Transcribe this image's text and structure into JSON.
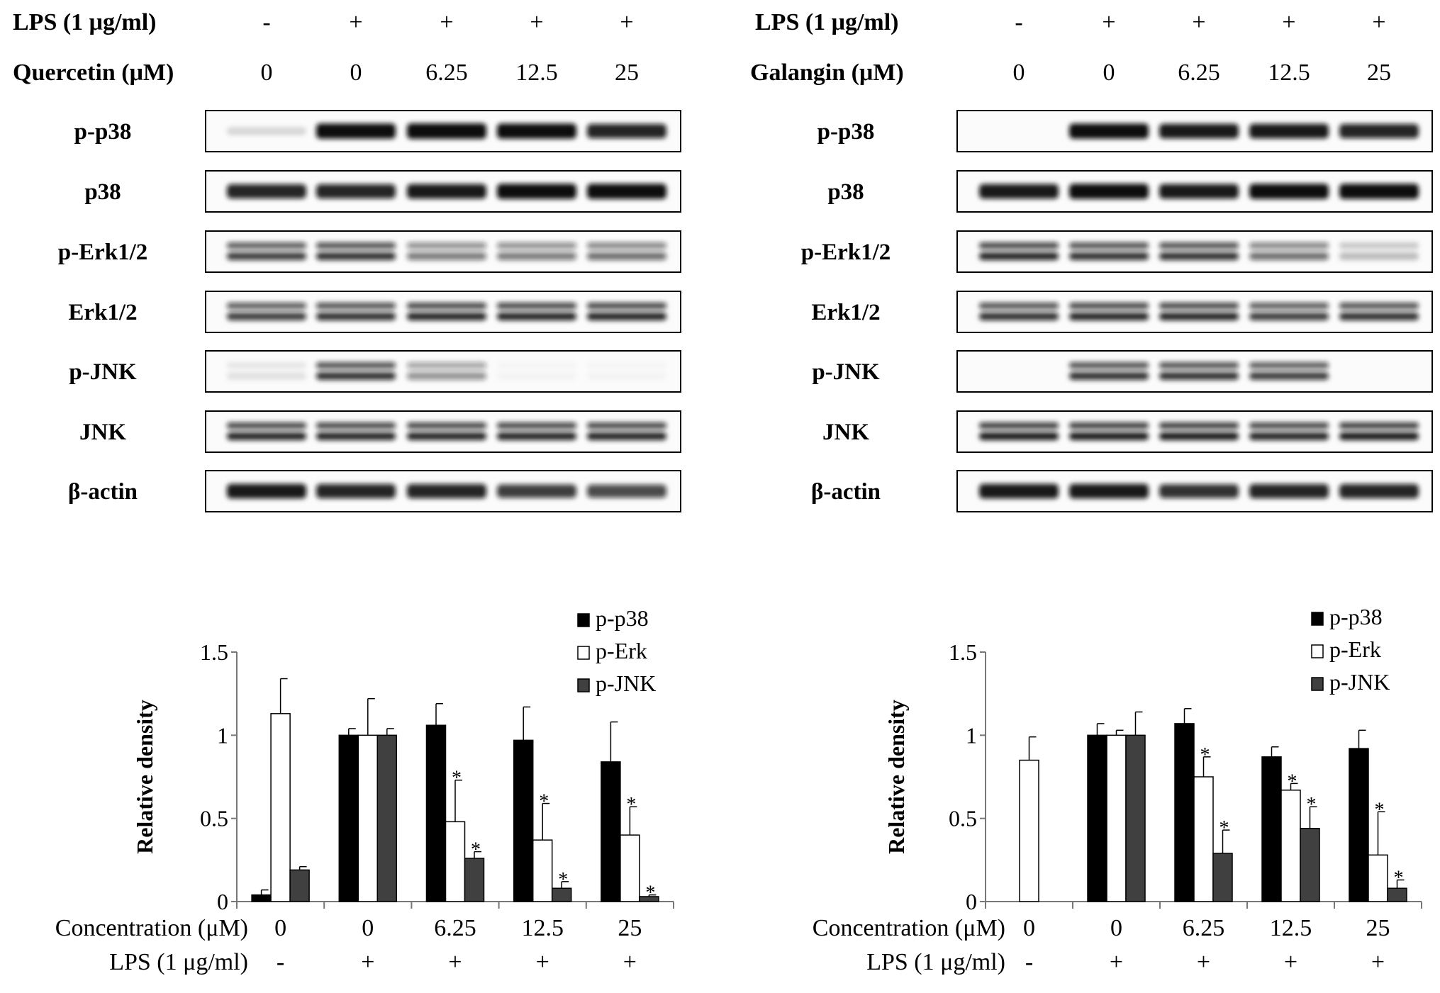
{
  "panels": [
    {
      "blot": {
        "lps_label": "LPS (1 μg/ml)",
        "lps_values": [
          "-",
          "+",
          "+",
          "+",
          "+"
        ],
        "compound_label": "Quercetin (μM)",
        "compound_values": [
          "0",
          "0",
          "6.25",
          "12.5",
          "25"
        ],
        "rows": [
          {
            "label": "p-p38",
            "pattern": "single",
            "intensity": [
              0.1,
              0.95,
              1.0,
              0.95,
              0.85
            ]
          },
          {
            "label": "p38",
            "pattern": "single",
            "intensity": [
              0.85,
              0.85,
              0.9,
              0.95,
              0.95
            ]
          },
          {
            "label": "p-Erk1/2",
            "pattern": "double",
            "intensity": [
              0.8,
              0.85,
              0.55,
              0.55,
              0.6
            ]
          },
          {
            "label": "Erk1/2",
            "pattern": "double",
            "intensity": [
              0.8,
              0.85,
              0.9,
              0.9,
              0.9
            ]
          },
          {
            "label": "p-JNK",
            "pattern": "double",
            "intensity": [
              0.1,
              0.85,
              0.45,
              0.03,
              0.03
            ]
          },
          {
            "label": "JNK",
            "pattern": "double",
            "intensity": [
              0.9,
              0.9,
              0.9,
              0.9,
              0.9
            ]
          },
          {
            "label": "β-actin",
            "pattern": "single",
            "intensity": [
              0.9,
              0.85,
              0.85,
              0.75,
              0.7
            ]
          }
        ]
      },
      "chart_data": {
        "type": "bar",
        "title": "",
        "xlabel": "Concentration (μM)",
        "ylabel": "Relative density",
        "ylim": [
          0,
          1.5
        ],
        "yticks": [
          "0",
          "0.5",
          "1",
          "1.5"
        ],
        "categories": [
          "0",
          "0",
          "6.25",
          "12.5",
          "25"
        ],
        "lps_row_label": "LPS (1 μg/ml)",
        "lps": [
          "-",
          "+",
          "+",
          "+",
          "+"
        ],
        "legend_position": "top-right",
        "series": [
          {
            "name": "p-p38",
            "color": "#000000",
            "values": [
              0.04,
              1.0,
              1.06,
              0.97,
              0.84
            ],
            "errors": [
              0.03,
              0.04,
              0.13,
              0.2,
              0.24
            ],
            "significant": [
              false,
              false,
              false,
              false,
              false
            ]
          },
          {
            "name": "p-Erk",
            "color": "#ffffff",
            "values": [
              1.13,
              1.0,
              0.48,
              0.37,
              0.4
            ],
            "errors": [
              0.21,
              0.22,
              0.25,
              0.22,
              0.17
            ],
            "significant": [
              false,
              false,
              true,
              true,
              true
            ]
          },
          {
            "name": "p-JNK",
            "color": "#404040",
            "values": [
              0.19,
              1.0,
              0.26,
              0.08,
              0.03
            ],
            "errors": [
              0.02,
              0.04,
              0.04,
              0.04,
              0.01
            ],
            "significant": [
              false,
              false,
              true,
              true,
              true
            ]
          }
        ],
        "significance_marker": "*"
      }
    },
    {
      "blot": {
        "lps_label": "LPS (1 μg/ml)",
        "lps_values": [
          "-",
          "+",
          "+",
          "+",
          "+"
        ],
        "compound_label": "Galangin (μM)",
        "compound_values": [
          "0",
          "0",
          "6.25",
          "12.5",
          "25"
        ],
        "rows": [
          {
            "label": "p-p38",
            "pattern": "single",
            "intensity": [
              0.0,
              0.95,
              0.9,
              0.9,
              0.85
            ]
          },
          {
            "label": "p38",
            "pattern": "single",
            "intensity": [
              0.9,
              0.95,
              0.9,
              0.95,
              0.95
            ]
          },
          {
            "label": "p-Erk1/2",
            "pattern": "double",
            "intensity": [
              0.9,
              0.85,
              0.85,
              0.6,
              0.25
            ]
          },
          {
            "label": "Erk1/2",
            "pattern": "double",
            "intensity": [
              0.85,
              0.9,
              0.9,
              0.8,
              0.85
            ]
          },
          {
            "label": "p-JNK",
            "pattern": "double",
            "intensity": [
              0.0,
              0.85,
              0.85,
              0.8,
              0.0
            ]
          },
          {
            "label": "JNK",
            "pattern": "double",
            "intensity": [
              0.95,
              0.95,
              0.95,
              0.9,
              0.95
            ]
          },
          {
            "label": "β-actin",
            "pattern": "single",
            "intensity": [
              0.9,
              0.9,
              0.8,
              0.85,
              0.85
            ]
          }
        ]
      },
      "chart_data": {
        "type": "bar",
        "title": "",
        "xlabel": "Concentration (μM)",
        "ylabel": "Relative density",
        "ylim": [
          0,
          1.5
        ],
        "yticks": [
          "0",
          "0.5",
          "1",
          "1.5"
        ],
        "categories": [
          "0",
          "0",
          "6.25",
          "12.5",
          "25"
        ],
        "lps_row_label": "LPS (1 μg/ml)",
        "lps": [
          "-",
          "+",
          "+",
          "+",
          "+"
        ],
        "legend_position": "top-right",
        "series": [
          {
            "name": "p-p38",
            "color": "#000000",
            "values": [
              0.0,
              1.0,
              1.07,
              0.87,
              0.92
            ],
            "errors": [
              0.0,
              0.07,
              0.09,
              0.06,
              0.11
            ],
            "significant": [
              false,
              false,
              false,
              false,
              false
            ]
          },
          {
            "name": "p-Erk",
            "color": "#ffffff",
            "values": [
              0.85,
              1.0,
              0.75,
              0.67,
              0.28
            ],
            "errors": [
              0.14,
              0.03,
              0.12,
              0.04,
              0.26
            ],
            "significant": [
              false,
              false,
              true,
              true,
              true
            ]
          },
          {
            "name": "p-JNK",
            "color": "#404040",
            "values": [
              0.0,
              1.0,
              0.29,
              0.44,
              0.08
            ],
            "errors": [
              0.0,
              0.14,
              0.14,
              0.13,
              0.05
            ],
            "significant": [
              false,
              false,
              true,
              true,
              true
            ]
          }
        ],
        "significance_marker": "*"
      }
    }
  ]
}
